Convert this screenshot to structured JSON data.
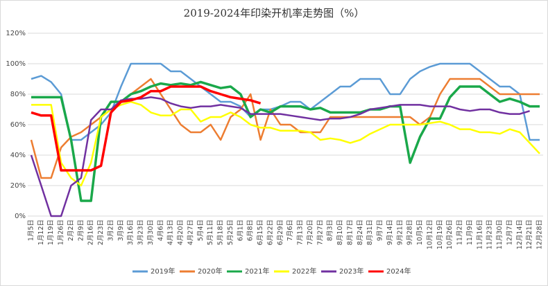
{
  "chart_data": {
    "type": "line",
    "title": "2019-2024年印染开机率走势图（%）",
    "categories": [
      "1月5日",
      "1月12日",
      "1月19日",
      "1月26日",
      "2月2日",
      "2月9日",
      "2月16日",
      "2月23日",
      "3月2日",
      "3月9日",
      "3月16日",
      "3月23日",
      "3月30日",
      "4月6日",
      "4月13日",
      "4月20日",
      "4月27日",
      "5月4日",
      "5月11日",
      "5月18日",
      "5月25日",
      "6月1日",
      "6月8日",
      "6月15日",
      "6月22日",
      "6月29日",
      "7月6日",
      "7月13日",
      "7月20日",
      "7月27日",
      "8月3日",
      "8月10日",
      "8月17日",
      "8月24日",
      "8月31日",
      "9月7日",
      "9月14日",
      "9月21日",
      "9月28日",
      "10月5日",
      "10月12日",
      "10月19日",
      "10月26日",
      "11月2日",
      "11月9日",
      "11月16日",
      "11月23日",
      "11月30日",
      "12月7日",
      "12月14日",
      "12月21日",
      "12月28日"
    ],
    "series": [
      {
        "name": "2019年",
        "color": "#5b9bd5",
        "values": [
          90,
          92,
          88,
          80,
          50,
          50,
          55,
          60,
          68,
          85,
          100,
          100,
          100,
          100,
          95,
          95,
          90,
          85,
          80,
          75,
          75,
          72,
          65,
          70,
          70,
          72,
          75,
          75,
          70,
          75,
          80,
          85,
          85,
          90,
          90,
          90,
          80,
          80,
          90,
          95,
          98,
          100,
          100,
          100,
          100,
          95,
          90,
          85,
          85,
          80,
          50,
          50
        ]
      },
      {
        "name": "2020年",
        "color": "#ed7d31",
        "values": [
          50,
          25,
          25,
          45,
          52,
          55,
          60,
          65,
          70,
          75,
          80,
          85,
          90,
          80,
          70,
          60,
          55,
          55,
          60,
          50,
          65,
          70,
          80,
          50,
          70,
          60,
          60,
          55,
          55,
          55,
          65,
          65,
          65,
          65,
          65,
          65,
          65,
          65,
          65,
          60,
          65,
          80,
          90,
          90,
          90,
          90,
          85,
          80,
          80,
          80,
          80,
          80
        ]
      },
      {
        "name": "2021年",
        "color": "#1aa84a",
        "values": [
          78,
          78,
          78,
          78,
          50,
          10,
          10,
          65,
          75,
          75,
          80,
          82,
          85,
          87,
          86,
          87,
          86,
          88,
          86,
          84,
          85,
          80,
          65,
          70,
          68,
          72,
          72,
          72,
          70,
          71,
          68,
          68,
          68,
          68,
          70,
          70,
          72,
          72,
          35,
          52,
          64,
          64,
          78,
          85,
          85,
          85,
          80,
          75,
          77,
          75,
          72,
          72
        ]
      },
      {
        "name": "2022年",
        "color": "#ffff00",
        "values": [
          73,
          73,
          73,
          35,
          25,
          20,
          35,
          65,
          70,
          73,
          75,
          73,
          68,
          66,
          66,
          70,
          70,
          62,
          65,
          65,
          68,
          65,
          60,
          58,
          58,
          56,
          56,
          56,
          55,
          50,
          51,
          50,
          48,
          50,
          54,
          57,
          60,
          60,
          60,
          60,
          61,
          62,
          60,
          57,
          57,
          55,
          55,
          54,
          57,
          55,
          48,
          41
        ]
      },
      {
        "name": "2023年",
        "color": "#7030a0",
        "values": [
          40,
          20,
          0,
          0,
          20,
          25,
          63,
          70,
          70,
          76,
          77,
          77,
          78,
          77,
          74,
          72,
          71,
          72,
          72,
          73,
          72,
          71,
          67,
          67,
          67,
          67,
          66,
          65,
          64,
          63,
          64,
          64,
          65,
          67,
          70,
          71,
          72,
          73,
          73,
          73,
          72,
          72,
          72,
          70,
          69,
          70,
          70,
          68,
          67,
          67,
          69,
          null
        ]
      },
      {
        "name": "2024年",
        "color": "#ff0000",
        "values": [
          68,
          66,
          66,
          30,
          30,
          30,
          30,
          33,
          68,
          75,
          76,
          78,
          82,
          82,
          85,
          85,
          85,
          85,
          82,
          80,
          78,
          77,
          76,
          74,
          null,
          null,
          null,
          null,
          null,
          null,
          null,
          null,
          null,
          null,
          null,
          null,
          null,
          null,
          null,
          null,
          null,
          null,
          null,
          null,
          null,
          null,
          null,
          null,
          null,
          null,
          null,
          null
        ]
      }
    ],
    "ylim": [
      0,
      120
    ],
    "yticks": [
      {
        "value": 0,
        "label": "0%"
      },
      {
        "value": 20,
        "label": "20%"
      },
      {
        "value": 40,
        "label": "40%"
      },
      {
        "value": 60,
        "label": "60%"
      },
      {
        "value": 80,
        "label": "80%"
      },
      {
        "value": 100,
        "label": "100%"
      },
      {
        "value": 120,
        "label": "120%"
      }
    ],
    "grid": true,
    "legend": "bottom"
  }
}
